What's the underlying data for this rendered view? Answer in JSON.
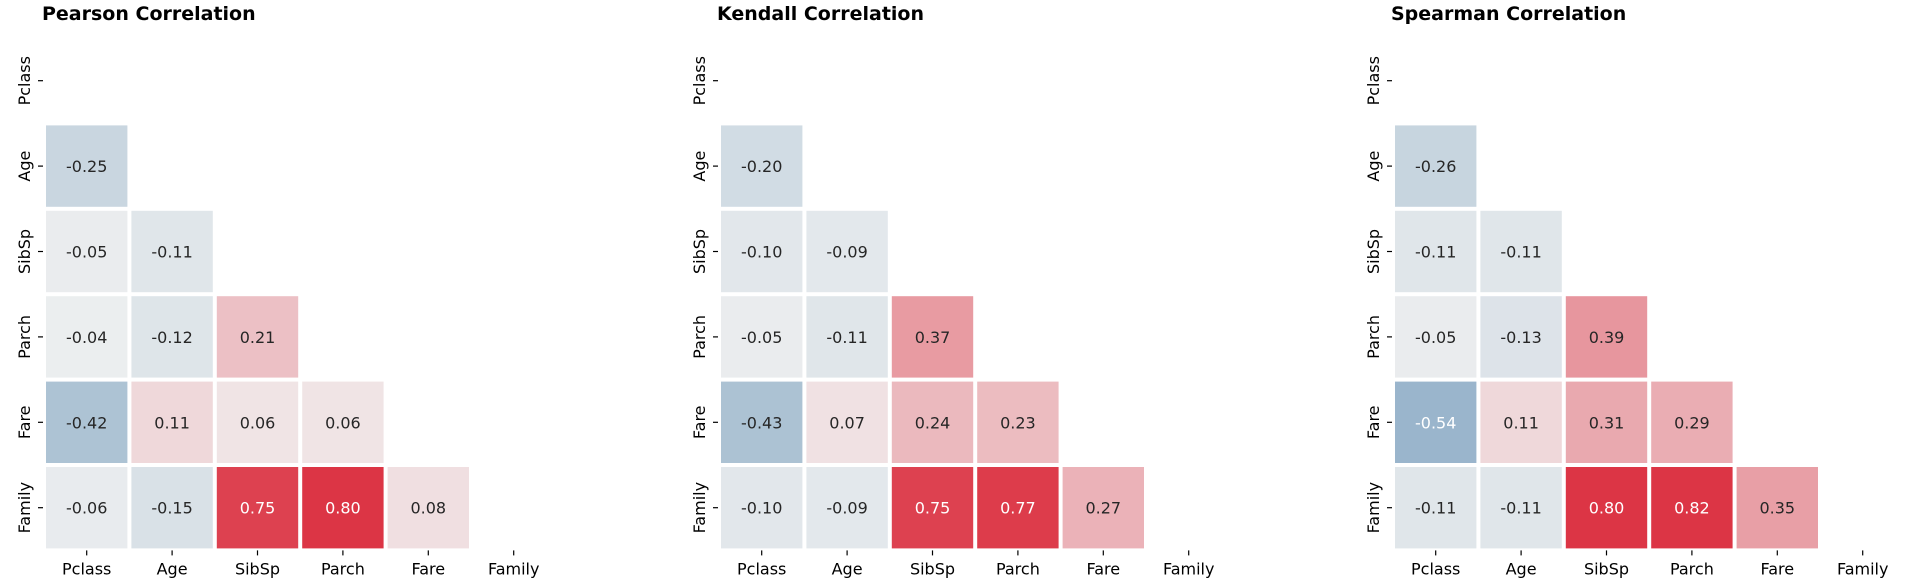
{
  "chart_data": [
    {
      "type": "heatmap",
      "title": "Pearson Correlation",
      "variables": [
        "Pclass",
        "Age",
        "SibSp",
        "Parch",
        "Fare",
        "Family"
      ],
      "mask": "upper-triangle-including-diagonal",
      "values": [
        [
          null,
          null,
          null,
          null,
          null,
          null
        ],
        [
          -0.25,
          null,
          null,
          null,
          null,
          null
        ],
        [
          -0.05,
          -0.11,
          null,
          null,
          null,
          null
        ],
        [
          -0.04,
          -0.12,
          0.21,
          null,
          null,
          null
        ],
        [
          -0.42,
          0.11,
          0.06,
          0.06,
          null,
          null
        ],
        [
          -0.06,
          -0.15,
          0.75,
          0.8,
          0.08,
          null
        ]
      ],
      "labels": [
        [
          null,
          null,
          null,
          null,
          null,
          null
        ],
        [
          "-0.25",
          null,
          null,
          null,
          null,
          null
        ],
        [
          "-0.05",
          "-0.11",
          null,
          null,
          null,
          null
        ],
        [
          "-0.04",
          "-0.12",
          "0.21",
          null,
          null,
          null
        ],
        [
          "-0.42",
          "0.11",
          "0.06",
          "0.06",
          null,
          null
        ],
        [
          "-0.06",
          "-0.15",
          "0.75",
          "0.80",
          "0.08",
          null
        ]
      ]
    },
    {
      "type": "heatmap",
      "title": "Kendall Correlation",
      "variables": [
        "Pclass",
        "Age",
        "SibSp",
        "Parch",
        "Fare",
        "Family"
      ],
      "mask": "upper-triangle-including-diagonal",
      "values": [
        [
          null,
          null,
          null,
          null,
          null,
          null
        ],
        [
          -0.2,
          null,
          null,
          null,
          null,
          null
        ],
        [
          -0.1,
          -0.09,
          null,
          null,
          null,
          null
        ],
        [
          -0.05,
          -0.11,
          0.37,
          null,
          null,
          null
        ],
        [
          -0.43,
          0.07,
          0.24,
          0.23,
          null,
          null
        ],
        [
          -0.1,
          -0.09,
          0.75,
          0.77,
          0.27,
          null
        ]
      ],
      "labels": [
        [
          null,
          null,
          null,
          null,
          null,
          null
        ],
        [
          "-0.20",
          null,
          null,
          null,
          null,
          null
        ],
        [
          "-0.10",
          "-0.09",
          null,
          null,
          null,
          null
        ],
        [
          "-0.05",
          "-0.11",
          "0.37",
          null,
          null,
          null
        ],
        [
          "-0.43",
          "0.07",
          "0.24",
          "0.23",
          null,
          null
        ],
        [
          "-0.10",
          "-0.09",
          "0.75",
          "0.77",
          "0.27",
          null
        ]
      ]
    },
    {
      "type": "heatmap",
      "title": "Spearman Correlation",
      "variables": [
        "Pclass",
        "Age",
        "SibSp",
        "Parch",
        "Fare",
        "Family"
      ],
      "mask": "upper-triangle-including-diagonal",
      "values": [
        [
          null,
          null,
          null,
          null,
          null,
          null
        ],
        [
          -0.26,
          null,
          null,
          null,
          null,
          null
        ],
        [
          -0.11,
          -0.11,
          null,
          null,
          null,
          null
        ],
        [
          -0.05,
          -0.13,
          0.39,
          null,
          null,
          null
        ],
        [
          -0.54,
          0.11,
          0.31,
          0.29,
          null,
          null
        ],
        [
          -0.11,
          -0.11,
          0.8,
          0.82,
          0.35,
          null
        ]
      ],
      "labels": [
        [
          null,
          null,
          null,
          null,
          null,
          null
        ],
        [
          "-0.26",
          null,
          null,
          null,
          null,
          null
        ],
        [
          "-0.11",
          "-0.11",
          null,
          null,
          null,
          null
        ],
        [
          "-0.05",
          "-0.13",
          "0.39",
          null,
          null,
          null
        ],
        [
          "-0.54",
          "0.11",
          "0.31",
          "0.29",
          null,
          null
        ],
        [
          "-0.11",
          "-0.11",
          "0.80",
          "0.82",
          "0.35",
          null
        ]
      ]
    }
  ],
  "colormap": {
    "type": "diverging",
    "negative": "#6f98b9",
    "center": "#f2f2f2",
    "positive": "#dc3545",
    "vmin": -0.8,
    "vmax": 0.8
  }
}
